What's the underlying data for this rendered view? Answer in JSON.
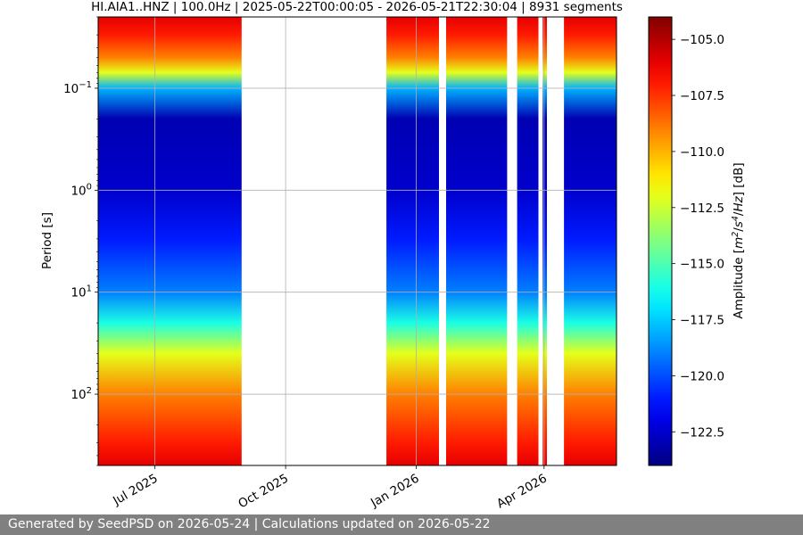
{
  "chart_data": {
    "type": "heatmap",
    "title": "HI.AIA1..HNZ | 100.0Hz | 2025-05-22T00:00:05 - 2026-05-21T22:30:04 | 8931 segments",
    "xlabel": "",
    "ylabel": "Period [s]",
    "x_range": [
      "2025-05-22",
      "2026-05-21"
    ],
    "x_ticks": [
      {
        "date": "2025-07-01",
        "label": "Jul 2025"
      },
      {
        "date": "2025-10-01",
        "label": "Oct 2025"
      },
      {
        "date": "2026-01-01",
        "label": "Jan 2026"
      },
      {
        "date": "2026-04-01",
        "label": "Apr 2026"
      }
    ],
    "y_scale": "log",
    "y_inverted": true,
    "y_range_s": [
      0.02,
      500
    ],
    "y_ticks": [
      {
        "value": 0.1,
        "base": "10",
        "exp": "−1"
      },
      {
        "value": 1,
        "base": "10",
        "exp": "0"
      },
      {
        "value": 10,
        "base": "10",
        "exp": "1"
      },
      {
        "value": 100,
        "base": "10",
        "exp": "2"
      }
    ],
    "grid": true,
    "data_periods": [
      {
        "start": "2025-05-22",
        "end": "2025-08-30"
      },
      {
        "start": "2025-12-11",
        "end": "2026-01-16"
      },
      {
        "start": "2026-01-22",
        "end": "2026-03-05"
      },
      {
        "start": "2026-03-13",
        "end": "2026-03-27"
      },
      {
        "start": "2026-03-31",
        "end": "2026-04-02"
      },
      {
        "start": "2026-04-15",
        "end": "2026-05-21"
      }
    ],
    "psd_profile": [
      {
        "period_s": 0.02,
        "amplitude_db": -106
      },
      {
        "period_s": 0.03,
        "amplitude_db": -107
      },
      {
        "period_s": 0.05,
        "amplitude_db": -109
      },
      {
        "period_s": 0.07,
        "amplitude_db": -112
      },
      {
        "period_s": 0.1,
        "amplitude_db": -118
      },
      {
        "period_s": 0.2,
        "amplitude_db": -123
      },
      {
        "period_s": 1,
        "amplitude_db": -122.5
      },
      {
        "period_s": 3,
        "amplitude_db": -121
      },
      {
        "period_s": 10,
        "amplitude_db": -119
      },
      {
        "period_s": 20,
        "amplitude_db": -116
      },
      {
        "period_s": 40,
        "amplitude_db": -112
      },
      {
        "period_s": 100,
        "amplitude_db": -109
      },
      {
        "period_s": 300,
        "amplitude_db": -107
      },
      {
        "period_s": 500,
        "amplitude_db": -106
      }
    ],
    "colorbar": {
      "label": "Amplitude [m²/s⁴/Hz] [dB]",
      "label_parts": [
        "Amplitude [",
        "m",
        "2",
        "/",
        "s",
        "4",
        "/",
        "Hz",
        "] [dB]"
      ],
      "colormap": "jet",
      "range_db": [
        -124,
        -104
      ],
      "ticks": [
        {
          "value": -105.0,
          "label": "−105.0"
        },
        {
          "value": -107.5,
          "label": "−107.5"
        },
        {
          "value": -110.0,
          "label": "−110.0"
        },
        {
          "value": -112.5,
          "label": "−112.5"
        },
        {
          "value": -115.0,
          "label": "−115.0"
        },
        {
          "value": -117.5,
          "label": "−117.5"
        },
        {
          "value": -120.0,
          "label": "−120.0"
        },
        {
          "value": -122.5,
          "label": "−122.5"
        }
      ]
    }
  },
  "footer": {
    "text": "Generated by SeedPSD on 2026-05-24 | Calculations updated on 2026-05-22"
  }
}
